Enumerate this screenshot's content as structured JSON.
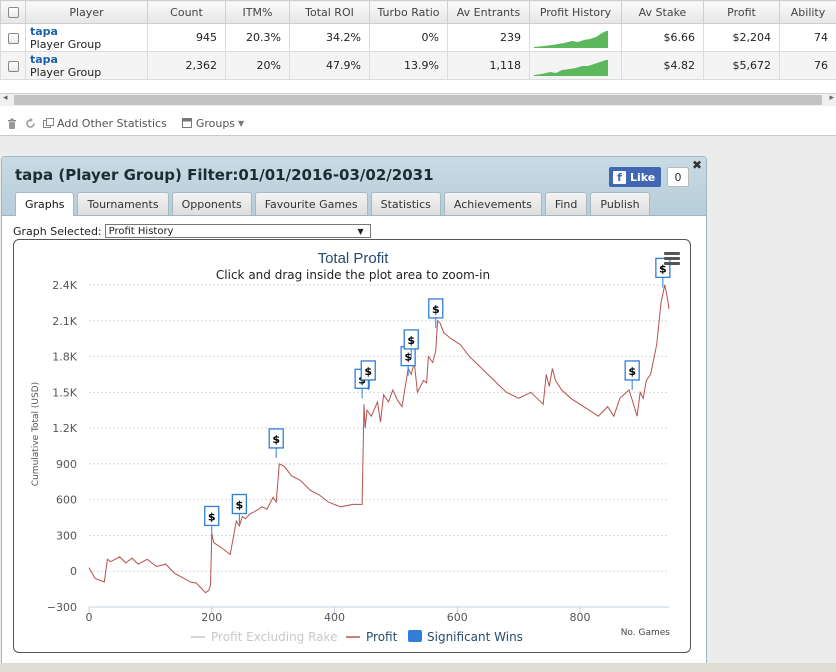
{
  "grid": {
    "headers": [
      "Player",
      "Count",
      "ITM%",
      "Total ROI",
      "Turbo Ratio",
      "Av Entrants",
      "Profit History",
      "Av Stake",
      "Profit",
      "Ability"
    ],
    "rows": [
      {
        "name": "tapa",
        "group": "Player Group",
        "count": "945",
        "itm": "20.3%",
        "roi": "34.2%",
        "turbo": "0%",
        "entrants": "239",
        "stake": "$6.66",
        "profit": "$2,204",
        "ability": "74"
      },
      {
        "name": "tapa",
        "group": "Player Group",
        "count": "2,362",
        "itm": "20%",
        "roi": "47.9%",
        "turbo": "13.9%",
        "entrants": "1,118",
        "stake": "$4.82",
        "profit": "$5,672",
        "ability": "76"
      }
    ],
    "toolbar": {
      "add_stats": "Add Other Statistics",
      "groups": "Groups"
    },
    "icons": {
      "delete": "trash-icon",
      "refresh": "refresh-icon",
      "add": "add-stats-icon",
      "groups": "groups-icon"
    }
  },
  "panel": {
    "title": "tapa (Player Group) Filter:01/01/2016-03/02/2031",
    "fb_like_label": "Like",
    "fb_like_count": "0",
    "tabs": [
      "Graphs",
      "Tournaments",
      "Opponents",
      "Favourite Games",
      "Statistics",
      "Achievements",
      "Find",
      "Publish"
    ],
    "active_tab": "Graphs",
    "graph_selected_label": "Graph Selected:",
    "graph_selected_value": "Profit History"
  },
  "chart_data": {
    "type": "line",
    "title": "Total Profit",
    "subtitle": "Click and drag inside the plot area to zoom-in",
    "xlabel": "No. Games",
    "ylabel": "Cumulative Total (USD)",
    "xlim": [
      0,
      945
    ],
    "ylim": [
      -300,
      2400
    ],
    "x_ticks": [
      0,
      200,
      400,
      600,
      800
    ],
    "y_ticks": [
      -300,
      0,
      300,
      600,
      900,
      1200,
      1500,
      1800,
      2100,
      2400
    ],
    "y_tick_labels": [
      "−300",
      "0",
      "300",
      "600",
      "900",
      "1.2K",
      "1.5K",
      "1.8K",
      "2.1K",
      "2.4K"
    ],
    "legend": [
      "Profit Excluding Rake",
      "Profit",
      "Significant Wins"
    ],
    "colors": {
      "profit": "#b5524e",
      "excluding_rake": "#c8c8c8",
      "significant_wins": "#2f7ed8"
    },
    "series": [
      {
        "name": "Profit",
        "x": [
          0,
          10,
          25,
          30,
          35,
          50,
          60,
          70,
          80,
          95,
          110,
          125,
          140,
          155,
          165,
          175,
          190,
          195,
          198,
          200,
          203,
          215,
          230,
          240,
          245,
          250,
          255,
          262,
          270,
          282,
          290,
          300,
          305,
          310,
          318,
          330,
          345,
          360,
          375,
          390,
          410,
          430,
          445,
          448,
          450,
          453,
          460,
          470,
          475,
          480,
          488,
          495,
          503,
          510,
          520,
          525,
          530,
          535,
          545,
          550,
          553,
          560,
          565,
          568,
          572,
          578,
          590,
          605,
          620,
          640,
          650,
          660,
          680,
          700,
          720,
          740,
          745,
          750,
          755,
          760,
          770,
          785,
          800,
          815,
          830,
          845,
          855,
          865,
          880,
          893,
          898,
          903,
          908,
          915,
          925,
          932,
          938,
          942,
          945
        ],
        "y": [
          30,
          -60,
          -90,
          100,
          80,
          120,
          70,
          110,
          60,
          100,
          40,
          60,
          -20,
          -60,
          -90,
          -100,
          -180,
          -160,
          -120,
          320,
          240,
          200,
          140,
          420,
          380,
          460,
          440,
          480,
          500,
          540,
          520,
          620,
          580,
          900,
          880,
          800,
          760,
          680,
          640,
          580,
          540,
          560,
          560,
          1400,
          1200,
          1350,
          1300,
          1420,
          1250,
          1480,
          1420,
          1520,
          1430,
          1380,
          1700,
          1650,
          1750,
          1500,
          1600,
          1580,
          1800,
          1750,
          1850,
          2100,
          2080,
          2000,
          1950,
          1900,
          1800,
          1700,
          1650,
          1600,
          1500,
          1450,
          1500,
          1400,
          1650,
          1550,
          1700,
          1600,
          1520,
          1450,
          1400,
          1350,
          1300,
          1380,
          1300,
          1450,
          1520,
          1300,
          1500,
          1450,
          1600,
          1650,
          1900,
          2250,
          2400,
          2300,
          2200
        ]
      },
      {
        "name": "Significant Wins",
        "x": [
          200,
          245,
          305,
          445,
          455,
          520,
          525,
          565,
          885,
          935
        ],
        "y": [
          300,
          400,
          950,
          1450,
          1520,
          1640,
          1780,
          2040,
          1520,
          2380
        ]
      }
    ]
  }
}
